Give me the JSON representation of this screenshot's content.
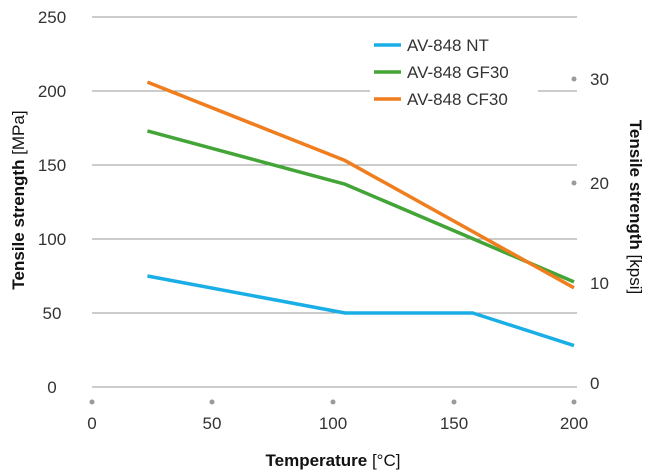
{
  "chart_data": {
    "type": "line",
    "xlabel": {
      "bold": "Temperature",
      "unit": " [°C]"
    },
    "ylabel_left": {
      "bold": "Tensile strength",
      "unit": " [MPa]"
    },
    "ylabel_right": {
      "bold": "Tensile strength",
      "unit": " [kpsi]"
    },
    "xlim": [
      0,
      200
    ],
    "ylim": [
      0,
      250
    ],
    "x_ticks": [
      "0",
      "50",
      "100",
      "150",
      "200"
    ],
    "y_ticks_left": [
      "0",
      "50",
      "100",
      "150",
      "200",
      "250"
    ],
    "y_ticks_right": [
      "0",
      "10",
      "20",
      "30"
    ],
    "grid": true,
    "legend_position": "top-right",
    "series": [
      {
        "name": "AV-848 NT",
        "color": "#1aaee6",
        "x": [
          23,
          105,
          158,
          200
        ],
        "y": [
          75,
          50,
          50,
          28
        ]
      },
      {
        "name": "AV-848 GF30",
        "color": "#43a537",
        "x": [
          23,
          105,
          200
        ],
        "y": [
          173,
          137,
          71
        ]
      },
      {
        "name": "AV-848 CF30",
        "color": "#f07d1e",
        "x": [
          23,
          105,
          200
        ],
        "y": [
          206,
          153,
          67
        ]
      }
    ]
  }
}
